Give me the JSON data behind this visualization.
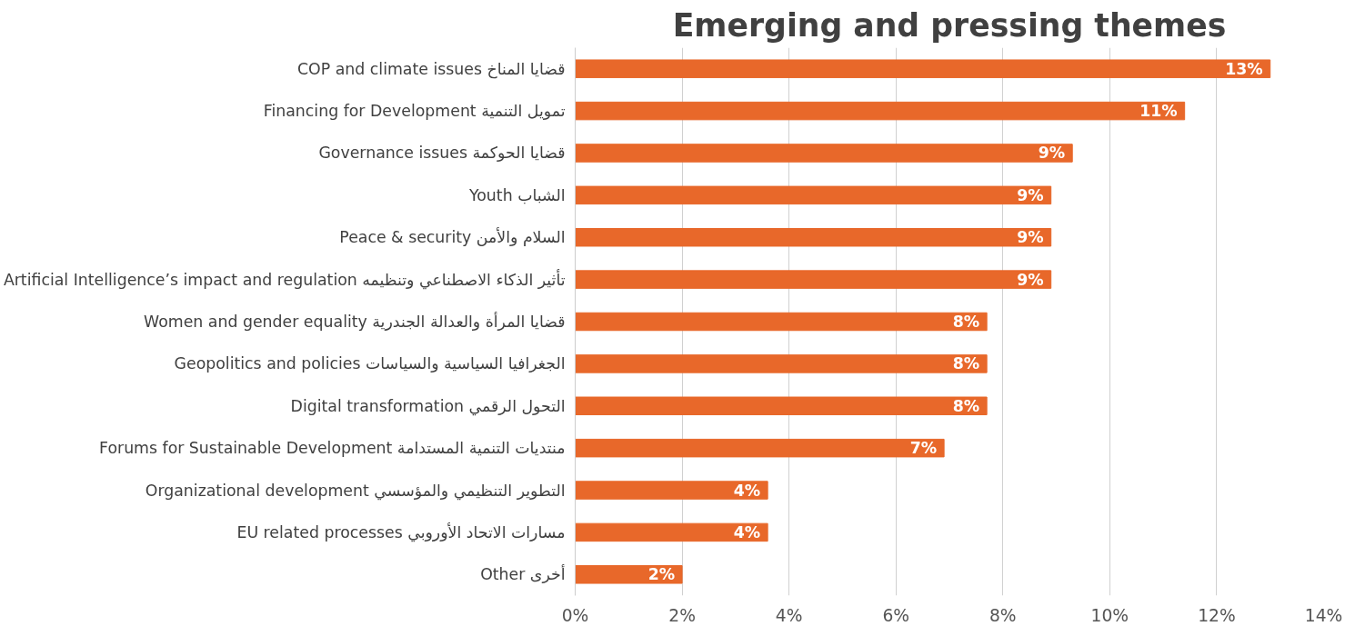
{
  "chart_data": {
    "type": "bar",
    "orientation": "horizontal",
    "title": "Emerging and pressing themes",
    "categories": [
      "COP and climate issues قضايا المناخ",
      "Financing for Development تمويل التنمية",
      "Governance issues قضايا الحوكمة",
      "Youth الشباب",
      "Peace & security السلام والأمن",
      "Artificial Intelligence’s impact and regulation تأثير الذكاء الاصطناعي وتنظيمه",
      "Women and gender equality قضايا المرأة والعدالة الجندرية",
      "Geopolitics and policies الجغرافيا السياسية والسياسات",
      "Digital transformation التحول الرقمي",
      "Forums for Sustainable Development منتديات التنمية المستدامة",
      "Organizational development التطوير التنظيمي والمؤسسي",
      "EU related processes مسارات الاتحاد الأوروبي",
      "Other أخرى"
    ],
    "values": [
      13.0,
      11.4,
      9.3,
      8.9,
      8.9,
      8.9,
      7.7,
      7.7,
      7.7,
      6.9,
      3.6,
      3.6,
      2.0
    ],
    "value_labels": [
      "13%",
      "11%",
      "9%",
      "9%",
      "9%",
      "9%",
      "8%",
      "8%",
      "8%",
      "7%",
      "4%",
      "4%",
      "2%"
    ],
    "color": "#e8682a",
    "xlim": [
      0,
      14
    ],
    "xticks": [
      {
        "value": 0,
        "label": "0%"
      },
      {
        "value": 2,
        "label": "2%"
      },
      {
        "value": 4,
        "label": "4%"
      },
      {
        "value": 6,
        "label": "6%"
      },
      {
        "value": 8,
        "label": "8%"
      },
      {
        "value": 10,
        "label": "10%"
      },
      {
        "value": 12,
        "label": "12%"
      },
      {
        "value": 14,
        "label": "14%"
      }
    ],
    "grid": "x"
  }
}
